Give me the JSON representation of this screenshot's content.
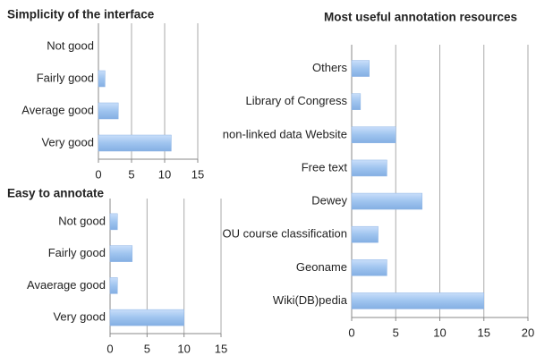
{
  "chart_data": [
    {
      "type": "bar",
      "orientation": "horizontal",
      "title": "Simplicity of the interface",
      "categories": [
        "Not good",
        "Fairly good",
        "Average good",
        "Very good"
      ],
      "values": [
        0,
        1,
        3,
        11
      ],
      "color": "#9fc4ef",
      "xlim": [
        0,
        15
      ],
      "xticks": [
        0,
        5,
        10,
        15
      ],
      "grid": true
    },
    {
      "type": "bar",
      "orientation": "horizontal",
      "title": "Easy to annotate",
      "categories": [
        "Not good",
        "Fairly good",
        "Avaerage good",
        "Very good"
      ],
      "values": [
        1,
        3,
        1,
        10
      ],
      "color": "#9fc4ef",
      "xlim": [
        0,
        15
      ],
      "xticks": [
        0,
        5,
        10,
        15
      ],
      "grid": true
    },
    {
      "type": "bar",
      "orientation": "horizontal",
      "title": "Most useful annotation resources",
      "categories": [
        "Others",
        "Library of Congress",
        "non-linked data Website",
        "Free text",
        "Dewey",
        "OU course classification",
        "Geoname",
        "Wiki(DB)pedia"
      ],
      "values": [
        2,
        1,
        5,
        4,
        8,
        3,
        4,
        15
      ],
      "color": "#9fc4ef",
      "xlim": [
        0,
        20
      ],
      "xticks": [
        0,
        5,
        10,
        15,
        20
      ],
      "grid": true
    }
  ]
}
